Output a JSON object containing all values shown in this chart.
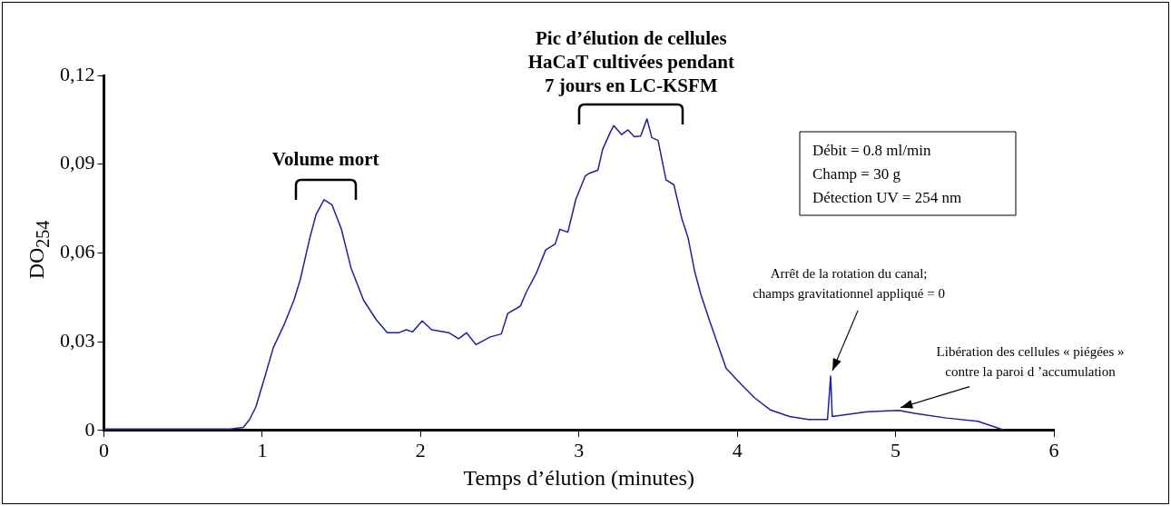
{
  "chart_data": {
    "type": "line",
    "xlabel": "Temps d’élution (minutes)",
    "ylabel": "DO$_{254}$",
    "xlim": [
      0,
      6
    ],
    "xticks": [
      0,
      1,
      2,
      3,
      4,
      5,
      6
    ],
    "ylim": [
      0,
      0.12
    ],
    "yticks": [
      {
        "value": 0,
        "label": "0"
      },
      {
        "value": 0.03,
        "label": "0,03"
      },
      {
        "value": 0.06,
        "label": "0,06"
      },
      {
        "value": 0.09,
        "label": "0,09"
      },
      {
        "value": 0.12,
        "label": "0,12"
      }
    ],
    "grid": false,
    "legend": false,
    "marker": "none",
    "line_style": "solid",
    "series": [
      {
        "color": "#1f1fa0",
        "x": [
          0,
          0.4,
          0.8,
          0.88,
          0.92,
          0.96,
          1.01,
          1.07,
          1.14,
          1.2,
          1.24,
          1.3,
          1.34,
          1.39,
          1.44,
          1.5,
          1.56,
          1.64,
          1.72,
          1.79,
          1.86,
          1.91,
          1.95,
          2.01,
          2.07,
          2.18,
          2.24,
          2.29,
          2.35,
          2.44,
          2.51,
          2.55,
          2.63,
          2.67,
          2.73,
          2.79,
          2.85,
          2.88,
          2.93,
          2.98,
          3.04,
          3.07,
          3.12,
          3.15,
          3.2,
          3.22,
          3.27,
          3.31,
          3.35,
          3.39,
          3.43,
          3.46,
          3.5,
          3.55,
          3.6,
          3.65,
          3.69,
          3.73,
          3.77,
          3.83,
          3.93,
          4.03,
          4.11,
          4.21,
          4.33,
          4.45,
          4.57,
          4.59,
          4.6,
          4.82,
          5.02,
          5.12,
          5.32,
          5.52,
          5.69
        ],
        "values": [
          0.0005,
          0.0005,
          0.0005,
          0.001,
          0.0037,
          0.008,
          0.017,
          0.028,
          0.036,
          0.044,
          0.051,
          0.065,
          0.073,
          0.078,
          0.0763,
          0.068,
          0.055,
          0.044,
          0.0374,
          0.033,
          0.033,
          0.034,
          0.0333,
          0.037,
          0.034,
          0.033,
          0.031,
          0.033,
          0.029,
          0.0316,
          0.0326,
          0.0395,
          0.042,
          0.047,
          0.053,
          0.061,
          0.063,
          0.068,
          0.067,
          0.078,
          0.086,
          0.087,
          0.088,
          0.095,
          0.101,
          0.103,
          0.1,
          0.1016,
          0.0993,
          0.0995,
          0.1053,
          0.099,
          0.098,
          0.0847,
          0.083,
          0.0716,
          0.065,
          0.054,
          0.046,
          0.0363,
          0.021,
          0.0153,
          0.011,
          0.0069,
          0.0047,
          0.0037,
          0.0037,
          0.0184,
          0.0047,
          0.0063,
          0.0068,
          0.0058,
          0.0042,
          0.0031,
          0
        ]
      }
    ],
    "annotations": [
      {
        "text": "Volume mort",
        "x": 1.4,
        "y": 0.078
      },
      "Pic d’élution de cellules\nHaCaT cultivées pendant\n7 jours en LC-KSFM",
      "Débit = 0.8 ml/min\nChamp = 30 g\nDétection UV = 254 nm",
      {
        "text": "Arrêt de la rotation du canal;\nchamps gravitationnel appliqué = 0",
        "x": 4.59,
        "y": 0.0184
      },
      {
        "text": "Libération des cellules « piégées »\ncontre la paroi d ’accumulation",
        "x": 5.02,
        "y": 0.0068
      }
    ]
  }
}
